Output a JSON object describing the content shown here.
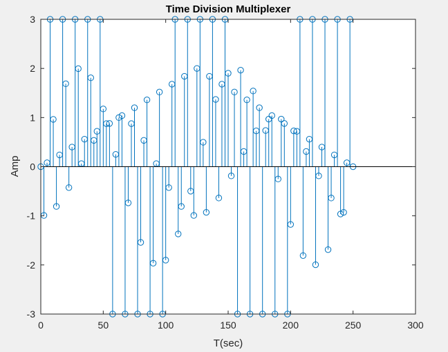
{
  "chart_data": {
    "type": "stem",
    "title": "Time Division Multiplexer",
    "xlabel": "T(sec)",
    "ylabel": "Amp",
    "xlim": [
      0,
      300
    ],
    "ylim": [
      -3,
      3
    ],
    "xticks": [
      0,
      50,
      100,
      150,
      200,
      250,
      300
    ],
    "yticks": [
      -3,
      -2,
      -1,
      0,
      1,
      2,
      3
    ],
    "grid": false,
    "legend": false,
    "series_color": "#0072bd",
    "sample_step": 2.5,
    "sample_count": 101,
    "baseline": 0,
    "components": [
      {
        "shape": "sine",
        "amplitude": 2,
        "period": 125,
        "phase_offset_x": 0
      },
      {
        "shape": "cosine",
        "amplitude": 1,
        "period": 125,
        "phase_offset_x": 0,
        "sign": -1
      },
      {
        "shape": "triangle",
        "amplitude": 2,
        "period": 250,
        "phase_offset_x": 0
      },
      {
        "shape": "square",
        "amplitude": 3,
        "period": 100,
        "phase_offset_x": 0
      }
    ],
    "multiplex_order": [
      0,
      1,
      2,
      3
    ]
  }
}
